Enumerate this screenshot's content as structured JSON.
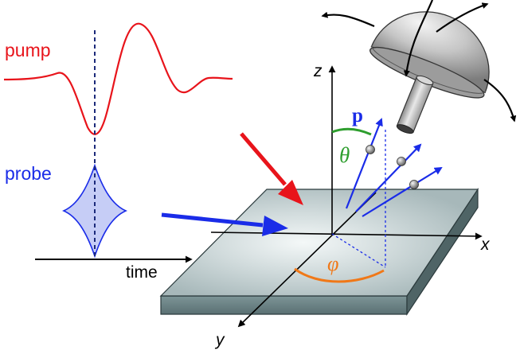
{
  "labels": {
    "pump": "pump",
    "probe": "probe",
    "time": "time",
    "axis_x": "x",
    "axis_y": "y",
    "axis_z": "z",
    "momentum": "p",
    "polar_angle": "θ",
    "azimuth_angle": "φ"
  },
  "colors": {
    "pump": "#e8141b",
    "probe": "#1a2ce8",
    "theta": "#2e9e2e",
    "phi": "#f07818",
    "sample_top": "#b4c4c6",
    "sample_side": "#6f8688",
    "detector": "#c8c8c8"
  },
  "icons": {
    "detector": "hemispherical-analyzer-icon",
    "rotation": "curved-arrow-icon",
    "electron": "sphere-icon"
  }
}
